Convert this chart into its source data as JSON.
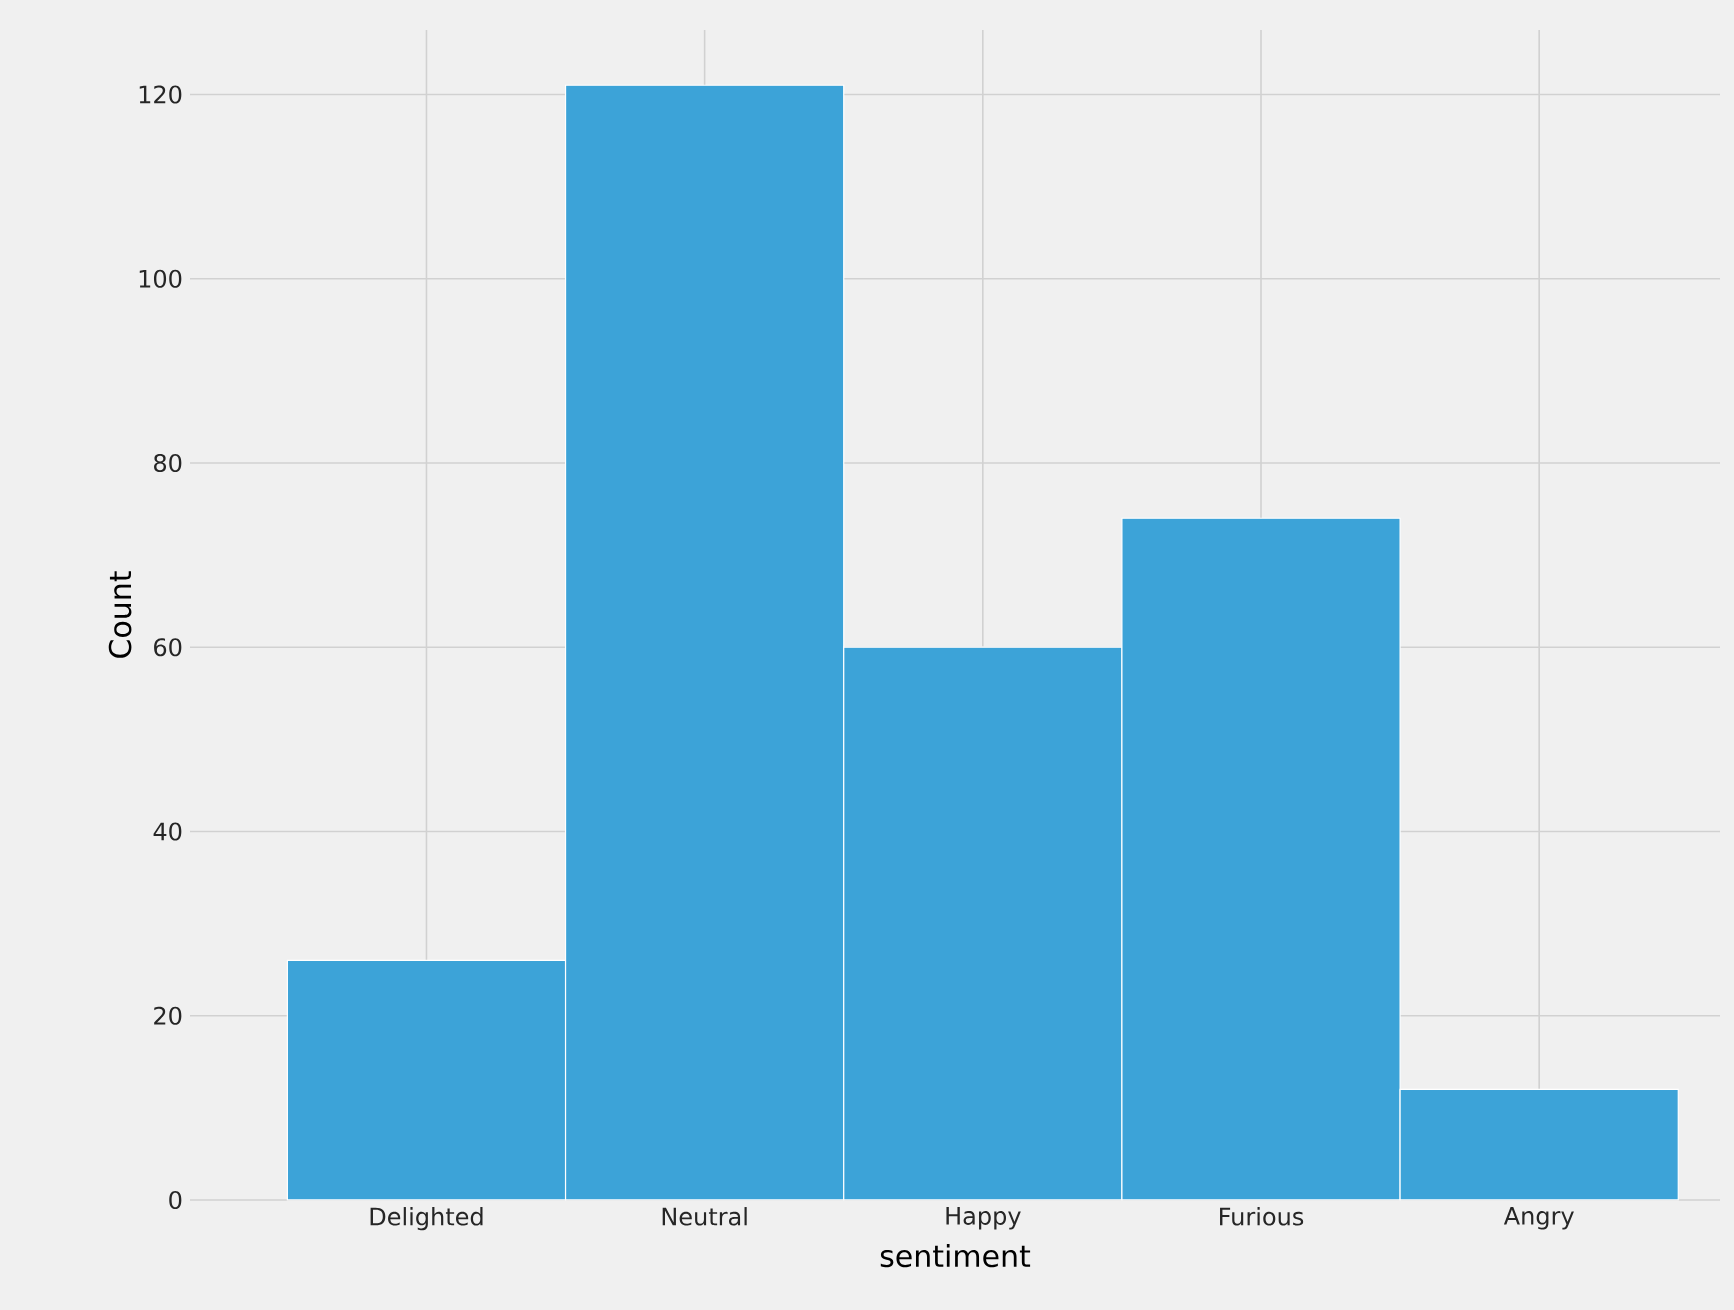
{
  "chart_data": {
    "type": "bar",
    "xlabel": "sentiment",
    "ylabel": "Count",
    "categories": [
      "Delighted",
      "Neutral",
      "Happy",
      "Furious",
      "Angry"
    ],
    "values": [
      26,
      121,
      60,
      74,
      12
    ],
    "color": "#3ca3d8",
    "ylim": [
      0,
      127
    ],
    "yticks": [
      0,
      20,
      40,
      60,
      80,
      100,
      120
    ],
    "grid": true
  }
}
